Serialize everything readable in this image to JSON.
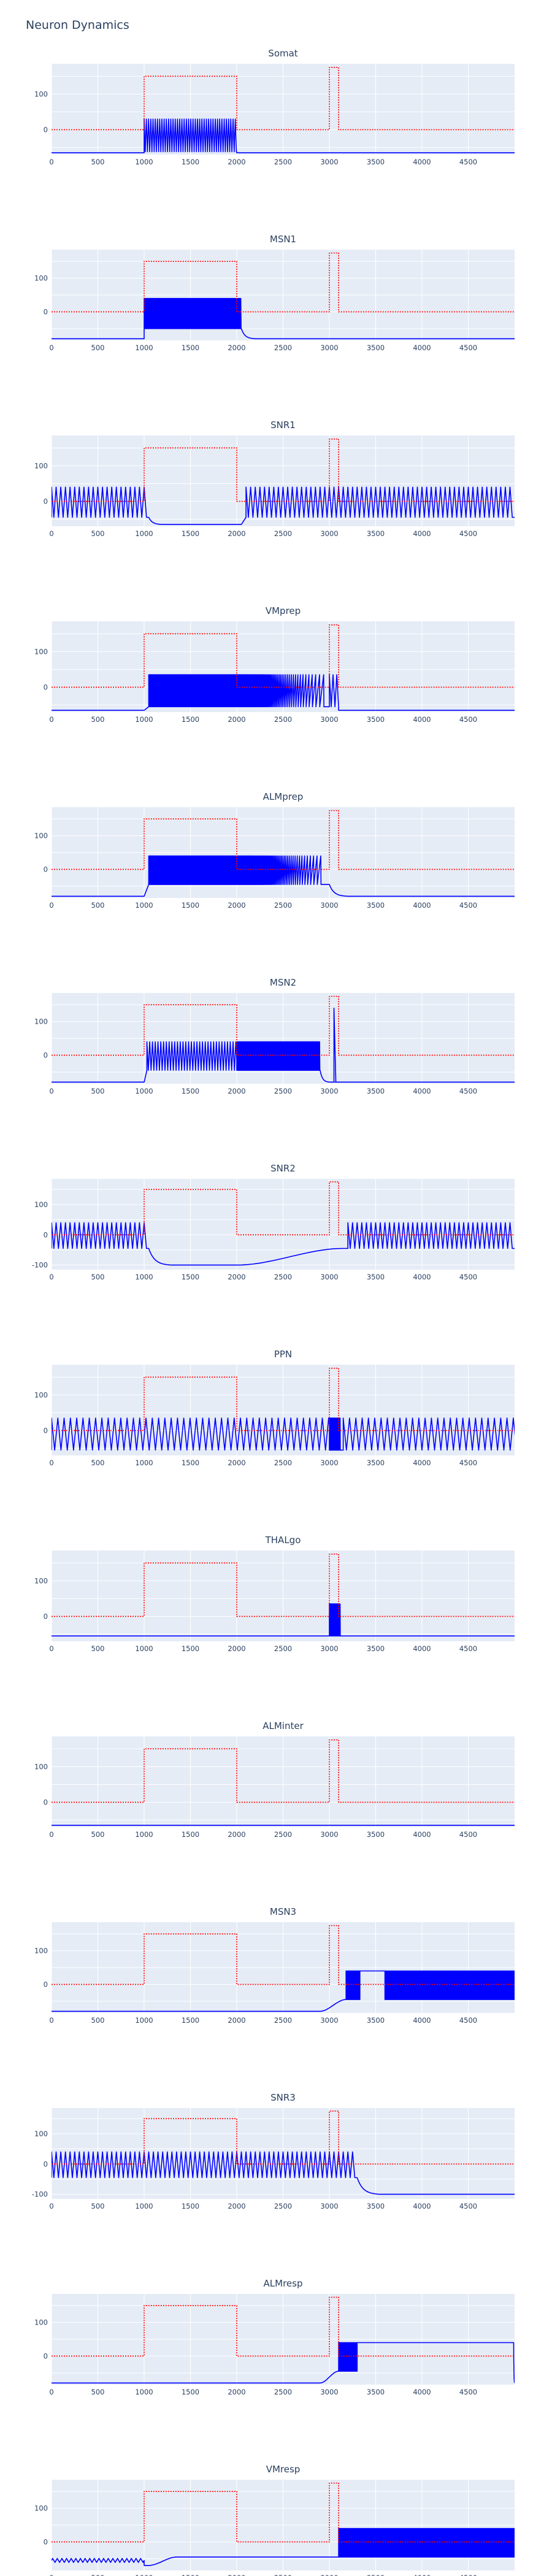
{
  "page": {
    "title": "Neuron Dynamics"
  },
  "chart_data": {
    "type": "line",
    "title": "Neuron Dynamics",
    "x_ticks": [
      "0",
      "500",
      "1000",
      "1500",
      "2000",
      "2500",
      "3000",
      "3500",
      "4000",
      "4500"
    ],
    "xlim": [
      0,
      5000
    ],
    "grid": true,
    "colors": {
      "trace": "#0000ff",
      "stimulus": "#ff0000",
      "plot_bg": "#e5ecf6",
      "grid": "#ffffff",
      "text": "#2a3f5f"
    },
    "stimulus": {
      "name": "stimulus",
      "style": "dotted",
      "x": [
        0,
        1000,
        1000,
        2000,
        2000,
        3000,
        3000,
        3100,
        3100,
        5000
      ],
      "y": [
        0,
        0,
        150,
        150,
        0,
        0,
        175,
        175,
        0,
        0
      ]
    },
    "panels": [
      {
        "title": "Somat",
        "ylim": [
          -70,
          185
        ],
        "y_ticks": [
          0,
          100
        ],
        "segments": [
          {
            "type": "flat",
            "from": 0,
            "to": 1000,
            "v": -65
          },
          {
            "type": "spikes",
            "from": 1000,
            "to": 2000,
            "period": 24,
            "low": -62,
            "high": 30
          },
          {
            "type": "flat",
            "from": 2000,
            "to": 5000,
            "v": -65
          }
        ]
      },
      {
        "title": "MSN1",
        "ylim": [
          -85,
          185
        ],
        "y_ticks": [
          0,
          100
        ],
        "segments": [
          {
            "type": "flat",
            "from": 0,
            "to": 1000,
            "v": -80
          },
          {
            "type": "spikes",
            "from": 1000,
            "to": 2050,
            "period": 6,
            "low": -50,
            "high": 40
          },
          {
            "type": "decay",
            "from": 2050,
            "to": 2200,
            "v0": -50,
            "v1": -80
          },
          {
            "type": "flat",
            "from": 2200,
            "to": 5000,
            "v": -80
          }
        ]
      },
      {
        "title": "SNR1",
        "ylim": [
          -70,
          185
        ],
        "y_ticks": [
          0,
          100
        ],
        "segments": [
          {
            "type": "spikes",
            "from": 0,
            "to": 1050,
            "period": 50,
            "low": -45,
            "high": 40
          },
          {
            "type": "decay",
            "from": 1050,
            "to": 1200,
            "v0": -45,
            "v1": -65
          },
          {
            "type": "flat",
            "from": 1200,
            "to": 2050,
            "v": -65
          },
          {
            "type": "spikes",
            "from": 2100,
            "to": 5000,
            "period": 50,
            "low": -45,
            "high": 40
          }
        ]
      },
      {
        "title": "VMprep",
        "ylim": [
          -70,
          185
        ],
        "y_ticks": [
          0,
          100
        ],
        "segments": [
          {
            "type": "flat",
            "from": 0,
            "to": 1000,
            "v": -65
          },
          {
            "type": "spikes",
            "from": 1050,
            "to": 2000,
            "period": 5,
            "low": -55,
            "high": 35
          },
          {
            "type": "spikes_slow",
            "from": 2000,
            "to": 2950,
            "p0": 5,
            "p1": 50,
            "low": -55,
            "high": 35
          },
          {
            "type": "spikes",
            "from": 3000,
            "to": 3100,
            "period": 40,
            "low": -55,
            "high": 35
          },
          {
            "type": "flat",
            "from": 3100,
            "to": 5000,
            "v": -65
          }
        ]
      },
      {
        "title": "ALMprep",
        "ylim": [
          -85,
          185
        ],
        "y_ticks": [
          0,
          100
        ],
        "segments": [
          {
            "type": "flat",
            "from": 0,
            "to": 1000,
            "v": -80
          },
          {
            "type": "spikes",
            "from": 1050,
            "to": 2000,
            "period": 4,
            "low": -45,
            "high": 40
          },
          {
            "type": "spikes_slow",
            "from": 2000,
            "to": 2920,
            "p0": 4,
            "p1": 45,
            "low": -45,
            "high": 40
          },
          {
            "type": "decay",
            "from": 3000,
            "to": 3200,
            "v0": -45,
            "v1": -80
          },
          {
            "type": "flat",
            "from": 3200,
            "to": 5000,
            "v": -80
          }
        ]
      },
      {
        "title": "MSN2",
        "ylim": [
          -85,
          185
        ],
        "y_ticks": [
          0,
          100
        ],
        "segments": [
          {
            "type": "flat",
            "from": 0,
            "to": 1000,
            "v": -80
          },
          {
            "type": "spikes",
            "from": 1030,
            "to": 2000,
            "period": 30,
            "low": -45,
            "high": 40
          },
          {
            "type": "spikes",
            "from": 2000,
            "to": 2900,
            "period": 5,
            "low": -45,
            "high": 40
          },
          {
            "type": "decay",
            "from": 2900,
            "to": 3000,
            "v0": -45,
            "v1": -80
          },
          {
            "type": "spikes",
            "from": 3050,
            "to": 3060,
            "period": 40,
            "low": -80,
            "high": 140
          },
          {
            "type": "flat",
            "from": 3100,
            "to": 5000,
            "v": -80
          }
        ]
      },
      {
        "title": "SNR2",
        "ylim": [
          -115,
          185
        ],
        "y_ticks": [
          -100,
          0,
          100
        ],
        "segments": [
          {
            "type": "spikes",
            "from": 0,
            "to": 1050,
            "period": 50,
            "low": -45,
            "high": 40
          },
          {
            "type": "decay",
            "from": 1050,
            "to": 1300,
            "v0": -45,
            "v1": -100
          },
          {
            "type": "flat",
            "from": 1300,
            "to": 2000,
            "v": -100
          },
          {
            "type": "recover",
            "from": 2000,
            "to": 3150,
            "v0": -100,
            "v1": -45
          },
          {
            "type": "spikes",
            "from": 3200,
            "to": 5000,
            "period": 50,
            "low": -45,
            "high": 40
          }
        ]
      },
      {
        "title": "PPN",
        "ylim": [
          -70,
          185
        ],
        "y_ticks": [
          0,
          100
        ],
        "segments": [
          {
            "type": "spikes",
            "from": 0,
            "to": 3000,
            "period": 68,
            "low": -55,
            "high": 35
          },
          {
            "type": "spikes",
            "from": 3000,
            "to": 3120,
            "period": 4,
            "low": -55,
            "high": 35
          },
          {
            "type": "spikes",
            "from": 3150,
            "to": 5000,
            "period": 68,
            "low": -55,
            "high": 35
          }
        ]
      },
      {
        "title": "THALgo",
        "ylim": [
          -70,
          185
        ],
        "y_ticks": [
          0,
          100
        ],
        "segments": [
          {
            "type": "flat",
            "from": 0,
            "to": 3000,
            "v": -55
          },
          {
            "type": "spikes",
            "from": 3000,
            "to": 3120,
            "period": 4,
            "low": -55,
            "high": 35
          },
          {
            "type": "flat",
            "from": 3150,
            "to": 5000,
            "v": -55
          }
        ]
      },
      {
        "title": "ALMinter",
        "ylim": [
          -70,
          185
        ],
        "y_ticks": [
          0,
          100
        ],
        "segments": [
          {
            "type": "flat",
            "from": 0,
            "to": 5000,
            "v": -65
          }
        ]
      },
      {
        "title": "MSN3",
        "ylim": [
          -85,
          185
        ],
        "y_ticks": [
          0,
          100
        ],
        "segments": [
          {
            "type": "flat",
            "from": 0,
            "to": 2900,
            "v": -80
          },
          {
            "type": "recover",
            "from": 2900,
            "to": 3180,
            "v0": -80,
            "v1": -45
          },
          {
            "type": "spikes",
            "from": 3180,
            "to": 3330,
            "period": 4,
            "low": -45,
            "high": 40
          },
          {
            "type": "flat",
            "from": 3330,
            "to": 3600,
            "v": 40
          },
          {
            "type": "spikes",
            "from": 3600,
            "to": 5000,
            "period": 5,
            "low": -45,
            "high": 40
          }
        ]
      },
      {
        "title": "SNR3",
        "ylim": [
          -115,
          185
        ],
        "y_ticks": [
          -100,
          0,
          100
        ],
        "segments": [
          {
            "type": "spikes",
            "from": 0,
            "to": 3300,
            "period": 50,
            "low": -45,
            "high": 40
          },
          {
            "type": "decay",
            "from": 3300,
            "to": 3550,
            "v0": -45,
            "v1": -100
          },
          {
            "type": "flat",
            "from": 3550,
            "to": 5000,
            "v": -100
          }
        ]
      },
      {
        "title": "ALMresp",
        "ylim": [
          -85,
          185
        ],
        "y_ticks": [
          0,
          100
        ],
        "segments": [
          {
            "type": "flat",
            "from": 0,
            "to": 2900,
            "v": -80
          },
          {
            "type": "recover",
            "from": 2900,
            "to": 3100,
            "v0": -80,
            "v1": -45
          },
          {
            "type": "spikes",
            "from": 3100,
            "to": 3300,
            "period": 4,
            "low": -45,
            "high": 40
          },
          {
            "type": "flat",
            "from": 3300,
            "to": 4990,
            "v": 40
          },
          {
            "type": "decay",
            "from": 4990,
            "to": 5000,
            "v0": 40,
            "v1": -80
          }
        ]
      },
      {
        "title": "VMresp",
        "ylim": [
          -85,
          185
        ],
        "y_ticks": [
          0,
          100
        ],
        "segments": [
          {
            "type": "ripple",
            "from": 0,
            "to": 1000,
            "v": -55,
            "amp": 6,
            "period": 50
          },
          {
            "type": "flat",
            "from": 1000,
            "to": 1050,
            "v": -70
          },
          {
            "type": "recover",
            "from": 1050,
            "to": 1350,
            "v0": -70,
            "v1": -45
          },
          {
            "type": "flat",
            "from": 1350,
            "to": 3100,
            "v": -45
          },
          {
            "type": "spikes",
            "from": 3100,
            "to": 5000,
            "period": 4,
            "low": -45,
            "high": 40
          }
        ]
      }
    ]
  }
}
